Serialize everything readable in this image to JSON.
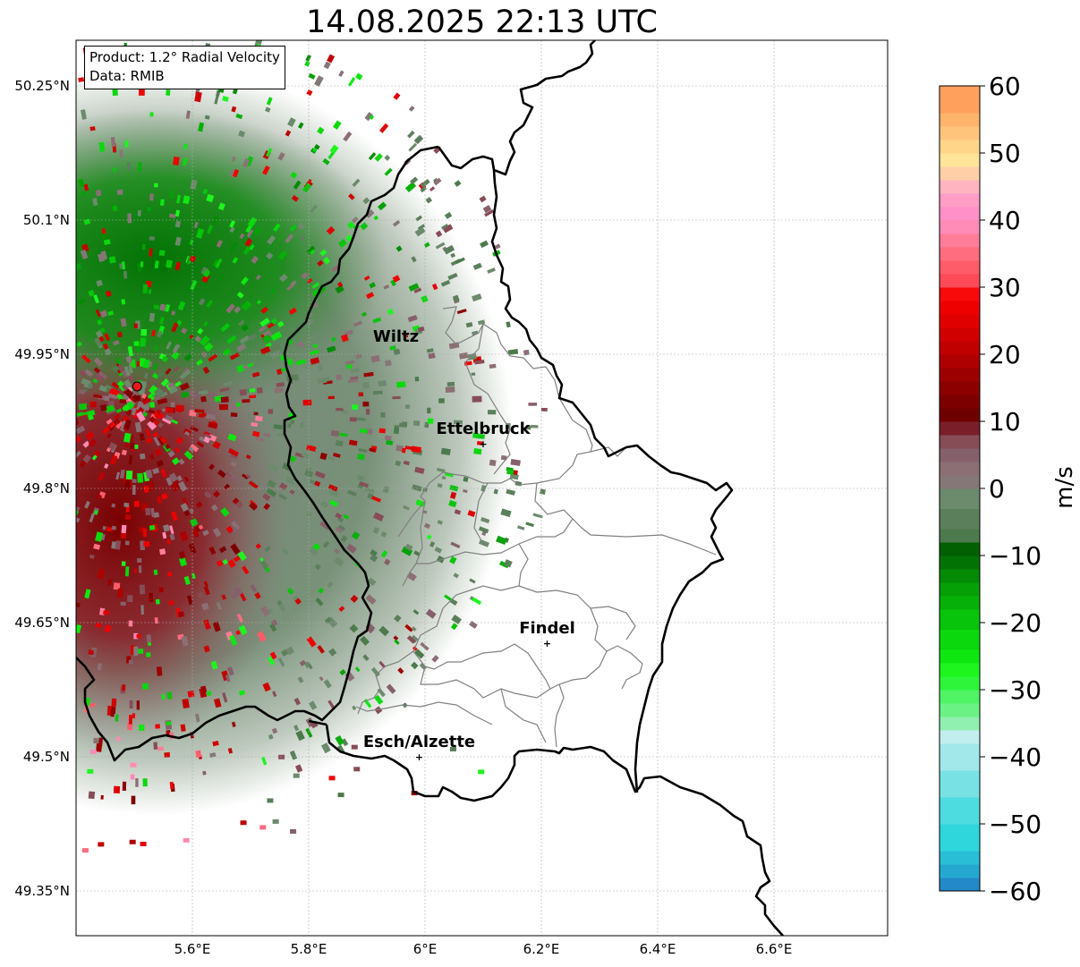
{
  "title": "14.08.2025 22:13 UTC",
  "info": {
    "product": "Product: 1.2° Radial Velocity",
    "data": "Data: RMIB"
  },
  "map": {
    "lon_range": [
      5.4,
      6.8
    ],
    "lat_range": [
      49.31,
      50.31
    ],
    "lon_ticks": [
      {
        "value": 5.6,
        "label": "5.6°E"
      },
      {
        "value": 5.8,
        "label": "5.8°E"
      },
      {
        "value": 6.0,
        "label": "6°E"
      },
      {
        "value": 6.2,
        "label": "6.2°E"
      },
      {
        "value": 6.4,
        "label": "6.4°E"
      },
      {
        "value": 6.6,
        "label": "6.6°E"
      }
    ],
    "lat_ticks": [
      {
        "value": 50.25,
        "label": "50.25°N"
      },
      {
        "value": 50.1,
        "label": "50.1°N"
      },
      {
        "value": 49.95,
        "label": "49.95°N"
      },
      {
        "value": 49.8,
        "label": "49.8°N"
      },
      {
        "value": 49.65,
        "label": "49.65°N"
      },
      {
        "value": 49.5,
        "label": "49.5°N"
      },
      {
        "value": 49.35,
        "label": "49.35°N"
      }
    ],
    "grid": true,
    "radar_site": {
      "lon": 5.505,
      "lat": 49.914,
      "color": "#e8191d"
    },
    "cities": [
      {
        "name": "Wiltz",
        "lon": 5.95,
        "lat": 49.97,
        "marker": false
      },
      {
        "name": "Ettelbruck",
        "lon": 6.1,
        "lat": 49.85,
        "marker": true
      },
      {
        "name": "Findel",
        "lon": 6.21,
        "lat": 49.627,
        "marker": true
      },
      {
        "name": "Esch/Alzette",
        "lon": 5.99,
        "lat": 49.5,
        "marker": true
      }
    ]
  },
  "colorbar": {
    "label": "m/s",
    "min": -60,
    "max": 60,
    "ticks": [
      60,
      50,
      40,
      30,
      20,
      10,
      0,
      -10,
      -20,
      -30,
      -40,
      -50,
      -60
    ],
    "tick_labels": [
      "60",
      "50",
      "40",
      "30",
      "20",
      "10",
      "0",
      "−10",
      "−20",
      "−30",
      "−40",
      "−50",
      "−60"
    ],
    "stops": [
      {
        "from": -60,
        "to": -58,
        "color": "#2389c8"
      },
      {
        "from": -58,
        "to": -56,
        "color": "#25a8d0"
      },
      {
        "from": -56,
        "to": -54,
        "color": "#29bed6"
      },
      {
        "from": -54,
        "to": -50,
        "color": "#2fd6dc"
      },
      {
        "from": -50,
        "to": -46,
        "color": "#4ddcdf"
      },
      {
        "from": -46,
        "to": -42,
        "color": "#78e1e3"
      },
      {
        "from": -42,
        "to": -38,
        "color": "#a2e7e9"
      },
      {
        "from": -38,
        "to": -36,
        "color": "#c3eef0"
      },
      {
        "from": -36,
        "to": -34,
        "color": "#90f0b0"
      },
      {
        "from": -34,
        "to": -32,
        "color": "#6bf285"
      },
      {
        "from": -32,
        "to": -30,
        "color": "#4ef463"
      },
      {
        "from": -30,
        "to": -28,
        "color": "#2ef53a"
      },
      {
        "from": -28,
        "to": -26,
        "color": "#1ef51f"
      },
      {
        "from": -26,
        "to": -24,
        "color": "#0ee810"
      },
      {
        "from": -24,
        "to": -21,
        "color": "#0bd80d"
      },
      {
        "from": -21,
        "to": -18,
        "color": "#08c40a"
      },
      {
        "from": -18,
        "to": -16,
        "color": "#06b008"
      },
      {
        "from": -16,
        "to": -14,
        "color": "#05a006"
      },
      {
        "from": -14,
        "to": -12,
        "color": "#048a05"
      },
      {
        "from": -12,
        "to": -10,
        "color": "#037204"
      },
      {
        "from": -10,
        "to": -8,
        "color": "#026003"
      },
      {
        "from": -8,
        "to": -6,
        "color": "#4c7a4c"
      },
      {
        "from": -6,
        "to": -3,
        "color": "#5b7f5b"
      },
      {
        "from": -3,
        "to": 0,
        "color": "#6c8a6c"
      },
      {
        "from": 0,
        "to": 2,
        "color": "#857777"
      },
      {
        "from": 2,
        "to": 4,
        "color": "#8b6f75"
      },
      {
        "from": 4,
        "to": 6,
        "color": "#85606b"
      },
      {
        "from": 6,
        "to": 8,
        "color": "#864d57"
      },
      {
        "from": 8,
        "to": 10,
        "color": "#7a1f2a"
      },
      {
        "from": 10,
        "to": 12,
        "color": "#6f0000"
      },
      {
        "from": 12,
        "to": 14,
        "color": "#7d0000"
      },
      {
        "from": 14,
        "to": 16,
        "color": "#8c0000"
      },
      {
        "from": 16,
        "to": 18,
        "color": "#9c0000"
      },
      {
        "from": 18,
        "to": 20,
        "color": "#ae0000"
      },
      {
        "from": 20,
        "to": 22,
        "color": "#c00000"
      },
      {
        "from": 22,
        "to": 24,
        "color": "#d00000"
      },
      {
        "from": 24,
        "to": 26,
        "color": "#e00000"
      },
      {
        "from": 26,
        "to": 28,
        "color": "#ee0000"
      },
      {
        "from": 28,
        "to": 30,
        "color": "#f80a0a"
      },
      {
        "from": 30,
        "to": 32,
        "color": "#ff4a58"
      },
      {
        "from": 32,
        "to": 34,
        "color": "#ff5c6a"
      },
      {
        "from": 34,
        "to": 36,
        "color": "#ff6d7e"
      },
      {
        "from": 36,
        "to": 38,
        "color": "#ff7d98"
      },
      {
        "from": 38,
        "to": 40,
        "color": "#ff8bb6"
      },
      {
        "from": 40,
        "to": 42,
        "color": "#ff90c8"
      },
      {
        "from": 42,
        "to": 44,
        "color": "#ff9dc6"
      },
      {
        "from": 44,
        "to": 46,
        "color": "#ffb4c0"
      },
      {
        "from": 46,
        "to": 48,
        "color": "#ffd0a8"
      },
      {
        "from": 48,
        "to": 50,
        "color": "#ffe49a"
      },
      {
        "from": 50,
        "to": 52,
        "color": "#ffd58a"
      },
      {
        "from": 52,
        "to": 54,
        "color": "#ffc47c"
      },
      {
        "from": 54,
        "to": 56,
        "color": "#ffb46c"
      },
      {
        "from": 56,
        "to": 60,
        "color": "#ffa05c"
      }
    ]
  }
}
